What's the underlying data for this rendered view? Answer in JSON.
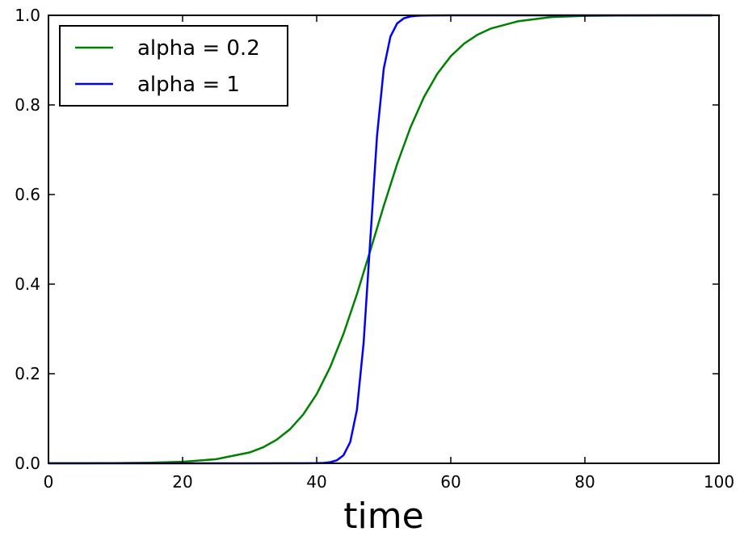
{
  "chart_data": {
    "type": "line",
    "title": "",
    "xlabel": "time",
    "ylabel": "",
    "xlim": [
      0,
      100
    ],
    "ylim": [
      0.0,
      1.0
    ],
    "x_ticks": [
      0,
      20,
      40,
      60,
      80,
      100
    ],
    "x_tick_labels": [
      "0",
      "20",
      "40",
      "60",
      "80",
      "100"
    ],
    "y_ticks": [
      0.0,
      0.2,
      0.4,
      0.6,
      0.8,
      1.0
    ],
    "y_tick_labels": [
      "0.0",
      "0.2",
      "0.4",
      "0.6",
      "0.8",
      "1.0"
    ],
    "grid": false,
    "legend_position": "upper-left",
    "series": [
      {
        "name": "alpha = 0.2",
        "color": "#008000",
        "x": [
          0,
          5,
          10,
          15,
          20,
          25,
          30,
          32,
          34,
          36,
          38,
          40,
          42,
          44,
          46,
          48,
          50,
          52,
          54,
          56,
          58,
          60,
          62,
          64,
          66,
          70,
          75,
          80,
          85,
          90,
          95,
          99
        ],
        "values": [
          0.0001,
          0.0002,
          0.0005,
          0.0013,
          0.0034,
          0.0091,
          0.0243,
          0.0357,
          0.0522,
          0.0759,
          0.1091,
          0.1545,
          0.2142,
          0.289,
          0.3775,
          0.475,
          0.5744,
          0.6682,
          0.7503,
          0.8176,
          0.8698,
          0.9088,
          0.937,
          0.9568,
          0.9707,
          0.9866,
          0.9963,
          0.999,
          0.9997,
          0.9999,
          1.0,
          1.0
        ]
      },
      {
        "name": "alpha = 1",
        "color": "#0000ff",
        "x": [
          0,
          10,
          20,
          30,
          40,
          41,
          42,
          43,
          44,
          45,
          46,
          47,
          48,
          49,
          50,
          51,
          52,
          53,
          54,
          55,
          56,
          57,
          60,
          70,
          80,
          90,
          99
        ],
        "values": [
          0.0,
          0.0,
          0.0,
          0.0,
          0.0003,
          0.0009,
          0.0025,
          0.0067,
          0.018,
          0.0474,
          0.1192,
          0.2689,
          0.5,
          0.7311,
          0.8808,
          0.9526,
          0.982,
          0.9933,
          0.9975,
          0.9991,
          0.9997,
          0.9999,
          1.0,
          1.0,
          1.0,
          1.0,
          1.0
        ]
      }
    ]
  }
}
